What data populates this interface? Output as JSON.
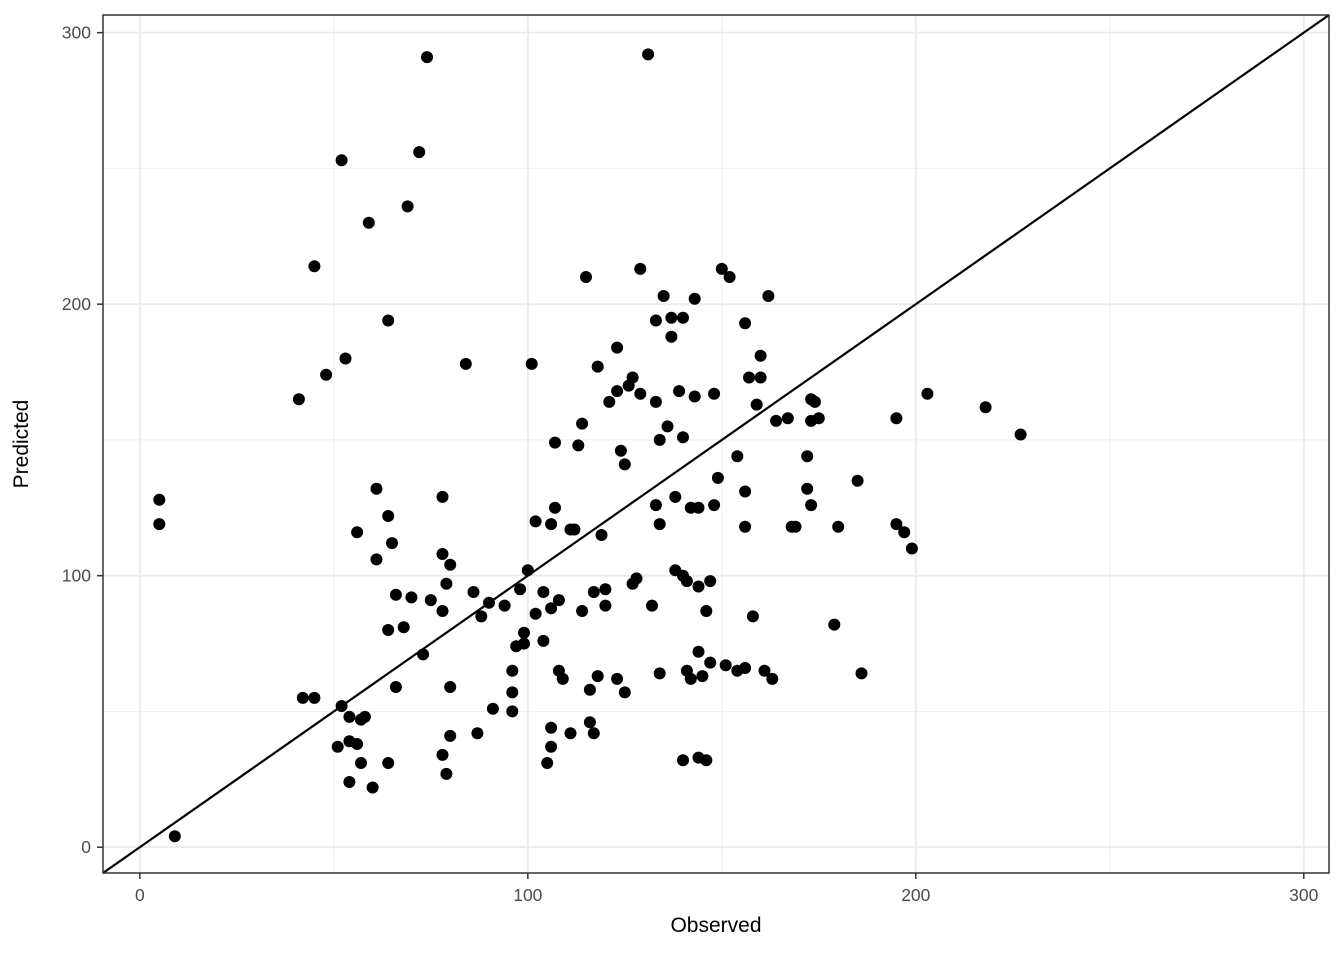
{
  "chart_data": {
    "type": "scatter",
    "title": "",
    "xlabel": "Observed",
    "ylabel": "Predicted",
    "xlim": [
      -9.5,
      306.5
    ],
    "ylim": [
      -9.5,
      306.5
    ],
    "x_major_ticks": [
      0,
      100,
      200,
      300
    ],
    "y_major_ticks": [
      0,
      100,
      200,
      300
    ],
    "x_tick_labels": [
      "0",
      "100",
      "200",
      "300"
    ],
    "y_tick_labels": [
      "0",
      "100",
      "200",
      "300"
    ],
    "x_minor_gridlines": [
      50,
      150,
      250
    ],
    "y_minor_gridlines": [
      50,
      150,
      250
    ],
    "grid": true,
    "legend": "none",
    "reference_line": {
      "name": "identity-line",
      "slope": 1,
      "intercept": 0
    },
    "point_style": {
      "color": "#000000",
      "radius_px": 6
    },
    "colors": {
      "panel_background": "#ffffff",
      "panel_border": "#333333",
      "grid_major": "#ebebeb",
      "grid_minor": "#efefef",
      "tick_mark": "#333333",
      "tick_label": "#4d4d4d",
      "axis_title": "#000000",
      "reference_line": "#000000"
    },
    "points": [
      [
        74,
        291
      ],
      [
        131,
        292
      ],
      [
        72,
        256
      ],
      [
        52,
        253
      ],
      [
        69,
        236
      ],
      [
        59,
        230
      ],
      [
        45,
        214
      ],
      [
        115,
        210
      ],
      [
        129,
        213
      ],
      [
        150,
        213
      ],
      [
        152,
        210
      ],
      [
        135,
        203
      ],
      [
        143,
        202
      ],
      [
        162,
        203
      ],
      [
        64,
        194
      ],
      [
        53,
        180
      ],
      [
        84,
        178
      ],
      [
        48,
        174
      ],
      [
        41,
        165
      ],
      [
        133,
        194
      ],
      [
        137,
        195
      ],
      [
        140,
        195
      ],
      [
        137,
        188
      ],
      [
        156,
        193
      ],
      [
        123,
        184
      ],
      [
        101,
        178
      ],
      [
        118,
        177
      ],
      [
        160,
        181
      ],
      [
        127,
        173
      ],
      [
        126,
        170
      ],
      [
        123,
        168
      ],
      [
        129,
        167
      ],
      [
        121,
        164
      ],
      [
        133,
        164
      ],
      [
        139,
        168
      ],
      [
        143,
        166
      ],
      [
        148,
        167
      ],
      [
        157,
        173
      ],
      [
        160,
        173
      ],
      [
        159,
        163
      ],
      [
        173,
        165
      ],
      [
        174,
        164
      ],
      [
        114,
        156
      ],
      [
        164,
        157
      ],
      [
        167,
        158
      ],
      [
        173,
        157
      ],
      [
        175,
        158
      ],
      [
        195,
        158
      ],
      [
        136,
        155
      ],
      [
        134,
        150
      ],
      [
        140,
        151
      ],
      [
        107,
        149
      ],
      [
        113,
        148
      ],
      [
        124,
        146
      ],
      [
        125,
        141
      ],
      [
        154,
        144
      ],
      [
        172,
        144
      ],
      [
        149,
        136
      ],
      [
        185,
        135
      ],
      [
        156,
        131
      ],
      [
        172,
        132
      ],
      [
        138,
        129
      ],
      [
        173,
        126
      ],
      [
        133,
        126
      ],
      [
        142,
        125
      ],
      [
        144,
        125
      ],
      [
        148,
        126
      ],
      [
        107,
        125
      ],
      [
        102,
        120
      ],
      [
        106,
        119
      ],
      [
        111,
        117
      ],
      [
        112,
        117
      ],
      [
        134,
        119
      ],
      [
        156,
        118
      ],
      [
        119,
        115
      ],
      [
        168,
        118
      ],
      [
        169,
        118
      ],
      [
        180,
        118
      ],
      [
        195,
        119
      ],
      [
        197,
        116
      ],
      [
        199,
        110
      ],
      [
        203,
        167
      ],
      [
        218,
        162
      ],
      [
        227,
        152
      ],
      [
        5,
        128
      ],
      [
        5,
        119
      ],
      [
        61,
        132
      ],
      [
        78,
        129
      ],
      [
        64,
        122
      ],
      [
        56,
        116
      ],
      [
        65,
        112
      ],
      [
        61,
        106
      ],
      [
        78,
        108
      ],
      [
        80,
        104
      ],
      [
        79,
        97
      ],
      [
        66,
        93
      ],
      [
        86,
        94
      ],
      [
        100,
        102
      ],
      [
        138,
        102
      ],
      [
        140,
        100
      ],
      [
        141,
        98
      ],
      [
        144,
        96
      ],
      [
        147,
        98
      ],
      [
        128,
        99
      ],
      [
        127,
        97
      ],
      [
        98,
        95
      ],
      [
        104,
        94
      ],
      [
        117,
        94
      ],
      [
        120,
        95
      ],
      [
        70,
        92
      ],
      [
        75,
        91
      ],
      [
        78,
        87
      ],
      [
        88,
        85
      ],
      [
        90,
        90
      ],
      [
        94,
        89
      ],
      [
        64,
        80
      ],
      [
        68,
        81
      ],
      [
        73,
        71
      ],
      [
        66,
        59
      ],
      [
        80,
        59
      ],
      [
        91,
        51
      ],
      [
        87,
        42
      ],
      [
        80,
        41
      ],
      [
        78,
        34
      ],
      [
        79,
        27
      ],
      [
        106,
        88
      ],
      [
        108,
        91
      ],
      [
        102,
        86
      ],
      [
        114,
        87
      ],
      [
        120,
        89
      ],
      [
        132,
        89
      ],
      [
        146,
        87
      ],
      [
        158,
        85
      ],
      [
        179,
        82
      ],
      [
        99,
        79
      ],
      [
        104,
        76
      ],
      [
        99,
        75
      ],
      [
        97,
        74
      ],
      [
        144,
        72
      ],
      [
        147,
        68
      ],
      [
        151,
        67
      ],
      [
        154,
        65
      ],
      [
        156,
        66
      ],
      [
        161,
        65
      ],
      [
        163,
        62
      ],
      [
        186,
        64
      ],
      [
        134,
        64
      ],
      [
        141,
        65
      ],
      [
        142,
        62
      ],
      [
        145,
        63
      ],
      [
        108,
        65
      ],
      [
        109,
        62
      ],
      [
        118,
        63
      ],
      [
        116,
        58
      ],
      [
        123,
        62
      ],
      [
        125,
        57
      ],
      [
        96,
        65
      ],
      [
        96,
        57
      ],
      [
        96,
        50
      ],
      [
        106,
        44
      ],
      [
        111,
        42
      ],
      [
        116,
        46
      ],
      [
        117,
        42
      ],
      [
        106,
        37
      ],
      [
        105,
        31
      ],
      [
        140,
        32
      ],
      [
        144,
        33
      ],
      [
        146,
        32
      ],
      [
        42,
        55
      ],
      [
        45,
        55
      ],
      [
        52,
        52
      ],
      [
        54,
        48
      ],
      [
        57,
        47
      ],
      [
        58,
        48
      ],
      [
        51,
        37
      ],
      [
        54,
        39
      ],
      [
        56,
        38
      ],
      [
        57,
        31
      ],
      [
        64,
        31
      ],
      [
        54,
        24
      ],
      [
        60,
        22
      ],
      [
        9,
        4
      ]
    ]
  }
}
